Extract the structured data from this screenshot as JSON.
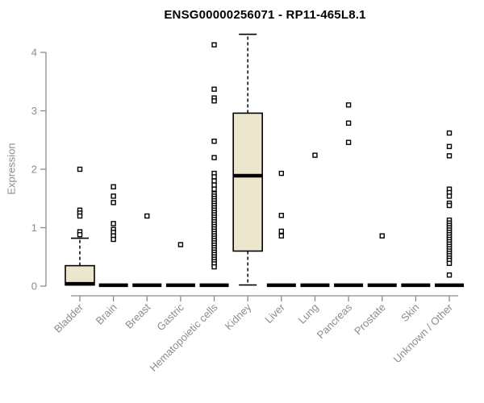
{
  "colors": {
    "box_fill": "#ECE7CC",
    "box_stroke": "#000000",
    "outlier_stroke": "#000000",
    "outlier_fill": "#FFFFFF",
    "axis": "#8C8C8C",
    "tick_label": "#8C8C8C",
    "title": "#000000",
    "background": "#FFFFFF"
  },
  "chart_data": {
    "type": "boxplot",
    "title": "ENSG00000256071 - RP11-465L8.1",
    "xlabel": "",
    "ylabel": "Expression",
    "ylim": [
      0,
      4.35
    ],
    "yticks": [
      0,
      1,
      2,
      3,
      4
    ],
    "grid": false,
    "legend": false,
    "categories": [
      "Bladder",
      "Brain",
      "Breast",
      "Gastric",
      "Hematopoietic cells",
      "Kidney",
      "Liver",
      "Lung",
      "Pancreas",
      "Prostate",
      "Skin",
      "Unknown / Other"
    ],
    "boxes": [
      {
        "label": "Bladder",
        "q1": 0.02,
        "median": 0.04,
        "q3": 0.35,
        "whisker_low": null,
        "whisker_high": 0.82,
        "outliers": [
          2.0,
          1.3,
          1.25,
          1.2,
          0.93,
          0.88
        ]
      },
      {
        "label": "Brain",
        "q1": 0,
        "median": 0.015,
        "q3": 0.03,
        "whisker_low": null,
        "whisker_high": null,
        "outliers": [
          1.7,
          1.54,
          1.43,
          1.07,
          0.97,
          0.92,
          0.86,
          0.8
        ]
      },
      {
        "label": "Breast",
        "q1": 0,
        "median": 0.015,
        "q3": 0.03,
        "whisker_low": null,
        "whisker_high": null,
        "outliers": [
          1.2
        ]
      },
      {
        "label": "Gastric",
        "q1": 0,
        "median": 0.015,
        "q3": 0.03,
        "whisker_low": null,
        "whisker_high": null,
        "outliers": [
          0.71
        ]
      },
      {
        "label": "Hematopoietic cells",
        "q1": 0,
        "median": 0.015,
        "q3": 0.03,
        "whisker_low": null,
        "whisker_high": null,
        "outliers": [
          4.13,
          3.37,
          3.22,
          3.17,
          2.48,
          2.2,
          1.93,
          1.87,
          1.8,
          1.73,
          1.66,
          1.58,
          1.54,
          1.5,
          1.46,
          1.42,
          1.38,
          1.34,
          1.3,
          1.26,
          1.22,
          1.18,
          1.14,
          1.1,
          1.06,
          1.02,
          0.98,
          0.94,
          0.9,
          0.86,
          0.82,
          0.78,
          0.74,
          0.7,
          0.66,
          0.62,
          0.58,
          0.54,
          0.5,
          0.46,
          0.42,
          0.38,
          0.33
        ]
      },
      {
        "label": "Kidney",
        "q1": 0.6,
        "median": 1.89,
        "q3": 2.96,
        "whisker_low": 0.02,
        "whisker_high": 4.31,
        "outliers": []
      },
      {
        "label": "Liver",
        "q1": 0,
        "median": 0.015,
        "q3": 0.03,
        "whisker_low": null,
        "whisker_high": null,
        "outliers": [
          1.93,
          1.21,
          0.94,
          0.86
        ]
      },
      {
        "label": "Lung",
        "q1": 0,
        "median": 0.015,
        "q3": 0.03,
        "whisker_low": null,
        "whisker_high": null,
        "outliers": [
          2.24
        ]
      },
      {
        "label": "Pancreas",
        "q1": 0,
        "median": 0.015,
        "q3": 0.03,
        "whisker_low": null,
        "whisker_high": null,
        "outliers": [
          3.1,
          2.79,
          2.46
        ]
      },
      {
        "label": "Prostate",
        "q1": 0,
        "median": 0.015,
        "q3": 0.03,
        "whisker_low": null,
        "whisker_high": null,
        "outliers": [
          0.86
        ]
      },
      {
        "label": "Skin",
        "q1": 0,
        "median": 0.015,
        "q3": 0.03,
        "whisker_low": null,
        "whisker_high": null,
        "outliers": []
      },
      {
        "label": "Unknown / Other",
        "q1": 0,
        "median": 0.015,
        "q3": 0.03,
        "whisker_low": null,
        "whisker_high": null,
        "outliers": [
          2.62,
          2.39,
          2.23,
          1.66,
          1.6,
          1.54,
          1.42,
          1.38,
          1.13,
          1.08,
          1.04,
          1.0,
          0.96,
          0.92,
          0.88,
          0.84,
          0.8,
          0.76,
          0.72,
          0.68,
          0.64,
          0.6,
          0.56,
          0.52,
          0.48,
          0.44,
          0.39,
          0.19
        ]
      }
    ]
  }
}
